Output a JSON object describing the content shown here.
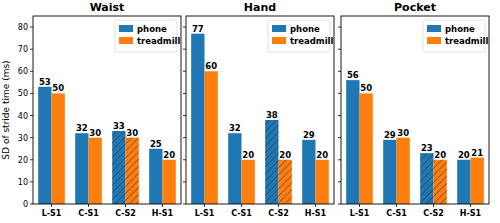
{
  "chart_data": [
    {
      "type": "bar",
      "title": "Waist",
      "ylabel": "SD of stride time (ms)",
      "categories": [
        "L-S1",
        "C-S1",
        "C-S2",
        "H-S1"
      ],
      "series": [
        {
          "name": "phone",
          "color": "#1f77b4",
          "values": [
            53,
            32,
            33,
            25
          ]
        },
        {
          "name": "treadmill",
          "color": "#ff7f0e",
          "values": [
            50,
            30,
            30,
            20
          ]
        }
      ],
      "ylim": [
        0,
        85
      ],
      "yticks": [
        0,
        10,
        20,
        30,
        40,
        50,
        60,
        70,
        80
      ],
      "data_labels": true,
      "legend": "upper right",
      "grid": false
    },
    {
      "type": "bar",
      "title": "Hand",
      "categories": [
        "L-S1",
        "C-S1",
        "C-S2",
        "H-S1"
      ],
      "series": [
        {
          "name": "phone",
          "color": "#1f77b4",
          "values": [
            77,
            32,
            38,
            29
          ]
        },
        {
          "name": "treadmill",
          "color": "#ff7f0e",
          "values": [
            60,
            20,
            20,
            20
          ]
        }
      ],
      "ylim": [
        0,
        85
      ],
      "yticks": [
        0,
        10,
        20,
        30,
        40,
        50,
        60,
        70,
        80
      ],
      "data_labels": true,
      "legend": "upper right",
      "grid": false,
      "tick_labels": "x"
    },
    {
      "type": "bar",
      "title": "Pocket",
      "categories": [
        "L-S1",
        "C-S1",
        "C-S2",
        "H-S1"
      ],
      "series": [
        {
          "name": "phone",
          "color": "#1f77b4",
          "values": [
            56,
            29,
            23,
            20
          ]
        },
        {
          "name": "treadmill",
          "color": "#ff7f0e",
          "values": [
            50,
            30,
            20,
            21
          ]
        }
      ],
      "ylim": [
        0,
        85
      ],
      "yticks": [
        0,
        10,
        20,
        30,
        40,
        50,
        60,
        70,
        80
      ],
      "data_labels": true,
      "legend": "upper right",
      "grid": false,
      "tick_labels": "x"
    }
  ]
}
